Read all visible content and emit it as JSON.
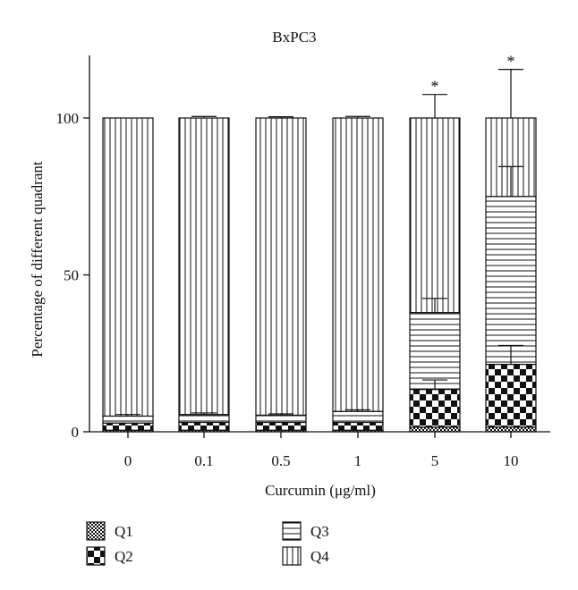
{
  "chart_data": {
    "type": "bar",
    "stacked": true,
    "title": "BxPC3",
    "xlabel": "Curcumin (μg/ml)",
    "ylabel": "Percentage of different quadrant",
    "ylim": [
      0,
      120
    ],
    "yticks": [
      0,
      50,
      100
    ],
    "categories": [
      "0",
      "0.1",
      "0.5",
      "1",
      "5",
      "10"
    ],
    "series": [
      {
        "name": "Q1",
        "pattern": "fine-checker",
        "values": [
          0.5,
          0.5,
          0.5,
          0.5,
          1.5,
          1.5
        ]
      },
      {
        "name": "Q2",
        "pattern": "coarse-checker",
        "values": [
          2.3,
          2.5,
          2.5,
          2.5,
          12,
          20
        ]
      },
      {
        "name": "Q3",
        "pattern": "horizontal-lines",
        "values": [
          2.2,
          2.5,
          2.3,
          3.5,
          24.5,
          53.5
        ]
      },
      {
        "name": "Q4",
        "pattern": "vertical-lines",
        "values": [
          95,
          94.5,
          94.7,
          93.5,
          62,
          25
        ]
      }
    ],
    "error_bars": [
      {
        "series": "Q2",
        "values": [
          0,
          0,
          0,
          0,
          3,
          6
        ]
      },
      {
        "series": "Q3",
        "values": [
          0.5,
          0.5,
          0.4,
          0.5,
          4.5,
          9.5
        ]
      },
      {
        "series": "Q4",
        "values": [
          0,
          0.5,
          0.4,
          0.5,
          7.5,
          15.5
        ]
      }
    ],
    "annotations": [
      {
        "category": "5",
        "text": "*"
      },
      {
        "category": "10",
        "text": "*"
      }
    ],
    "legend": {
      "position": "bottom",
      "columns": 2
    },
    "grid": false
  }
}
